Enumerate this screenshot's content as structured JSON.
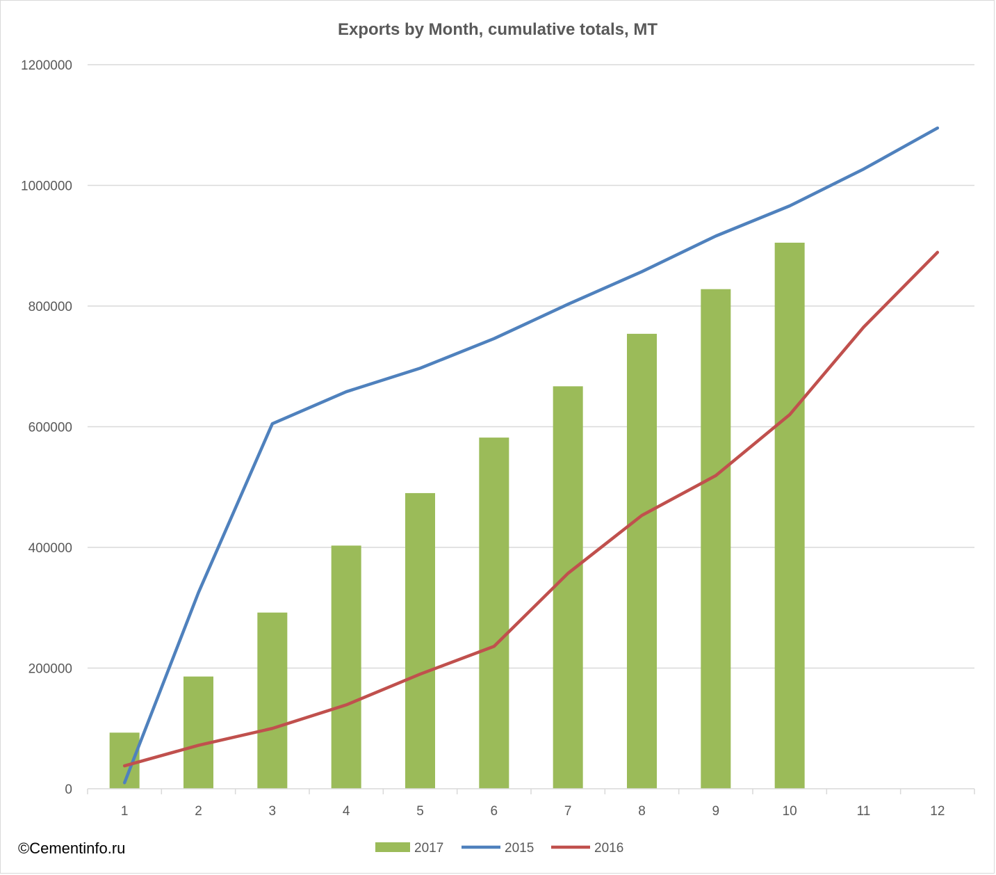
{
  "chart_data": {
    "type": "bar",
    "title": "Exports by Month, cumulative totals, MT",
    "xlabel": "",
    "ylabel": "",
    "categories": [
      "1",
      "2",
      "3",
      "4",
      "5",
      "6",
      "7",
      "8",
      "9",
      "10",
      "11",
      "12"
    ],
    "ylim": [
      0,
      1200000
    ],
    "yticks": [
      "0",
      "200000",
      "400000",
      "600000",
      "800000",
      "1000000",
      "1200000"
    ],
    "grid": true,
    "legend_position": "bottom",
    "series": [
      {
        "name": "2017",
        "type": "bar",
        "color": "#9bbb59",
        "values": [
          93000,
          186000,
          292000,
          403000,
          490000,
          582000,
          667000,
          754000,
          828000,
          905000,
          null,
          null
        ]
      },
      {
        "name": "2015",
        "type": "line",
        "color": "#4f81bd",
        "values": [
          10000,
          325000,
          605000,
          658000,
          697000,
          746000,
          803000,
          857000,
          916000,
          966000,
          1027000,
          1095000
        ]
      },
      {
        "name": "2016",
        "type": "line",
        "color": "#c0504d",
        "values": [
          38000,
          72000,
          100000,
          139000,
          190000,
          236000,
          357000,
          453000,
          519000,
          620000,
          765000,
          889000
        ]
      }
    ]
  },
  "watermark": "©Cementinfo.ru"
}
